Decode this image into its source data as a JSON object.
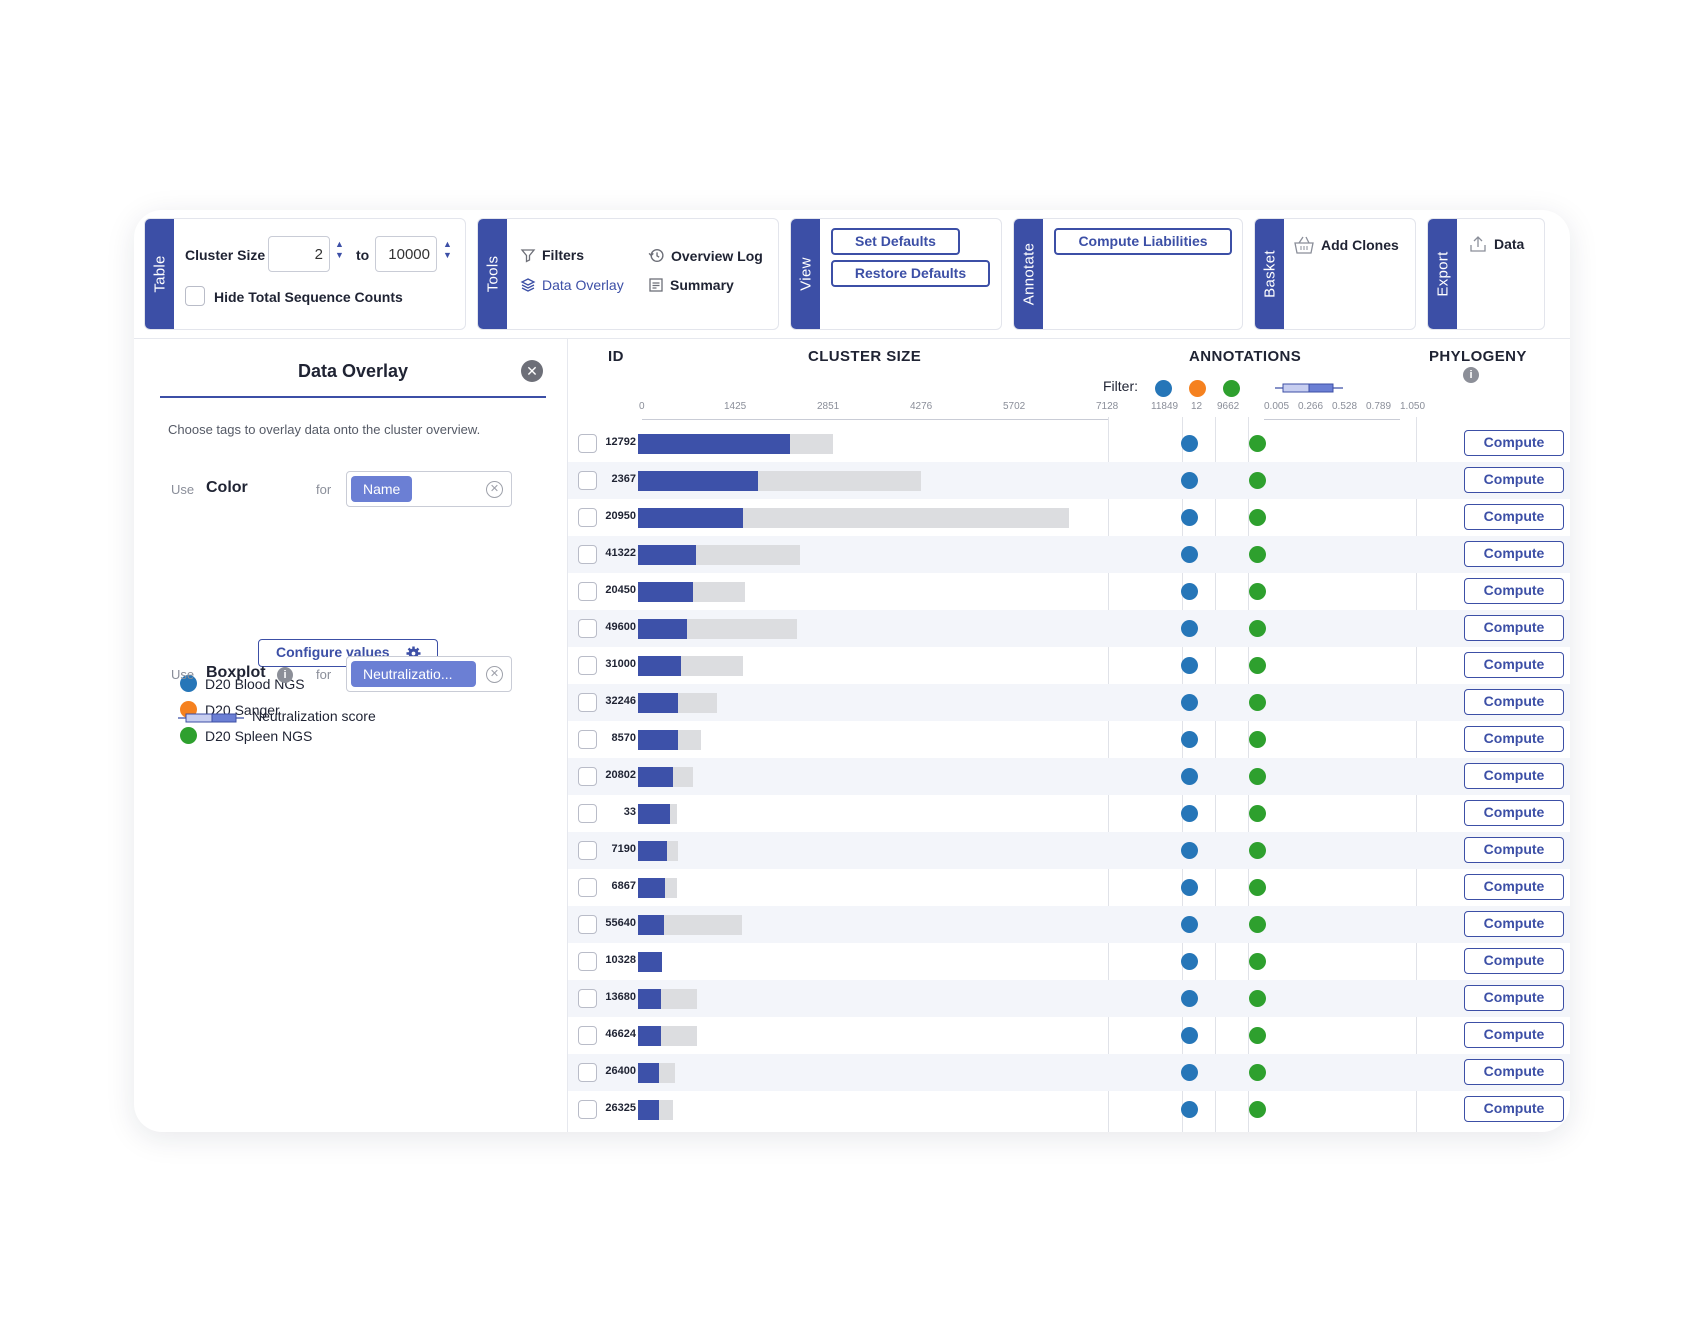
{
  "toolbar": {
    "table": {
      "tab": "Table",
      "cluster_size_label": "Cluster Size",
      "min": "2",
      "to": "to",
      "max": "10000",
      "hide_label": "Hide Total Sequence Counts"
    },
    "tools": {
      "tab": "Tools",
      "filters": "Filters",
      "overview_log": "Overview Log",
      "data_overlay": "Data Overlay",
      "summary": "Summary"
    },
    "view": {
      "tab": "View",
      "set_defaults": "Set Defaults",
      "restore_defaults": "Restore Defaults"
    },
    "annotate": {
      "tab": "Annotate",
      "compute_liabilities": "Compute Liabilities"
    },
    "basket": {
      "tab": "Basket",
      "add_clones": "Add Clones"
    },
    "export": {
      "tab": "Export",
      "data": "Data"
    }
  },
  "overlay_panel": {
    "title": "Data Overlay",
    "description": "Choose tags to overlay data onto the cluster overview.",
    "use": "Use",
    "for": "for",
    "color_label": "Color",
    "color_tag": "Name",
    "configure": "Configure values",
    "legend": [
      {
        "label": "D20 Blood NGS",
        "color": "#2676b8"
      },
      {
        "label": "D20 Sanger",
        "color": "#f5811f"
      },
      {
        "label": "D20 Spleen NGS",
        "color": "#2ea02e"
      }
    ],
    "boxplot_label": "Boxplot",
    "boxplot_tag": "Neutralizatio...",
    "boxplot_legend": "Neutralization score"
  },
  "table": {
    "headers": {
      "id": "ID",
      "cluster_size": "CLUSTER SIZE",
      "annotations": "ANNOTATIONS",
      "phylogeny": "PHYLOGENY"
    },
    "filter_label": "Filter:",
    "filter_counts": [
      "11849",
      "12",
      "9662"
    ],
    "axis_ticks": [
      "0",
      "1425",
      "2851",
      "4276",
      "5702",
      "7128"
    ],
    "box_ticks": [
      "0.005",
      "0.266",
      "0.528",
      "0.789",
      "1.050"
    ],
    "compute_label": "Compute",
    "rows": [
      {
        "id": "12792",
        "fg": 1.0,
        "total": 2.83,
        "dots": [
          "blue",
          "green"
        ]
      },
      {
        "id": "2367",
        "fg": 0.79,
        "total": 4.1,
        "dots": [
          "blue",
          "green"
        ]
      },
      {
        "id": "20950",
        "fg": 0.69,
        "total": 6.25,
        "dots": [
          "blue",
          "green"
        ]
      },
      {
        "id": "41322",
        "fg": 0.38,
        "total": 2.35,
        "dots": [
          "blue",
          "green"
        ]
      },
      {
        "id": "20450",
        "fg": 0.36,
        "total": 1.55,
        "dots": [
          "blue",
          "green"
        ]
      },
      {
        "id": "49600",
        "fg": 0.32,
        "total": 2.3,
        "dots": [
          "blue",
          "green"
        ]
      },
      {
        "id": "31000",
        "fg": 0.28,
        "total": 1.52,
        "dots": [
          "blue",
          "green"
        ]
      },
      {
        "id": "32246",
        "fg": 0.26,
        "total": 1.15,
        "dots": [
          "blue",
          "green"
        ]
      },
      {
        "id": "8570",
        "fg": 0.26,
        "total": 0.92,
        "dots": [
          "blue",
          "green"
        ]
      },
      {
        "id": "20802",
        "fg": 0.23,
        "total": 0.8,
        "dots": [
          "blue",
          "green"
        ]
      },
      {
        "id": "33",
        "fg": 0.21,
        "total": 0.56,
        "dots": [
          "blue",
          "green"
        ]
      },
      {
        "id": "7190",
        "fg": 0.19,
        "total": 0.58,
        "dots": [
          "blue",
          "green"
        ]
      },
      {
        "id": "6867",
        "fg": 0.18,
        "total": 0.57,
        "dots": [
          "blue",
          "green"
        ]
      },
      {
        "id": "55640",
        "fg": 0.17,
        "total": 1.5,
        "dots": [
          "blue",
          "green"
        ]
      },
      {
        "id": "10328",
        "fg": 0.16,
        "total": 0.22,
        "dots": [
          "blue",
          "green"
        ]
      },
      {
        "id": "13680",
        "fg": 0.15,
        "total": 0.85,
        "dots": [
          "blue",
          "green"
        ]
      },
      {
        "id": "46624",
        "fg": 0.15,
        "total": 0.85,
        "dots": [
          "blue",
          "green"
        ]
      },
      {
        "id": "26400",
        "fg": 0.14,
        "total": 0.54,
        "dots": [
          "blue",
          "green"
        ]
      },
      {
        "id": "26325",
        "fg": 0.14,
        "total": 0.5,
        "dots": [
          "blue",
          "green"
        ]
      }
    ]
  },
  "colors": {
    "accent": "#3c4fa6",
    "blue": "#2676b8",
    "orange": "#f5811f",
    "green": "#2ea02e"
  }
}
